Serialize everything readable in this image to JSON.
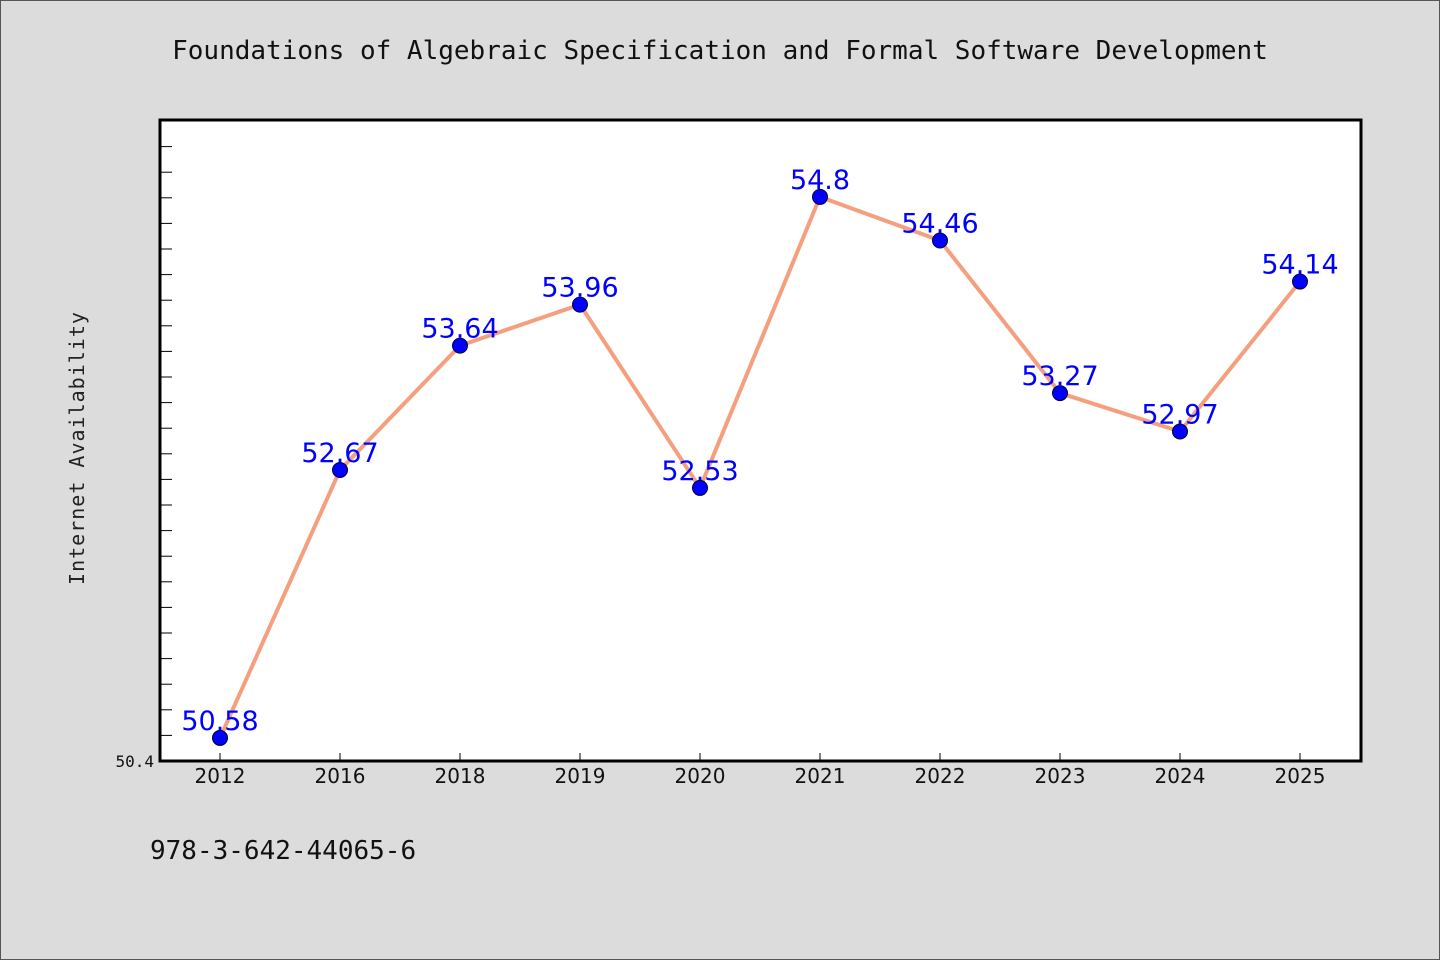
{
  "chart_data": {
    "type": "line",
    "title": "Foundations of Algebraic Specification and Formal Software Development",
    "xlabel": "",
    "ylabel": "Internet Availability",
    "categories": [
      "2012",
      "2016",
      "2018",
      "2019",
      "2020",
      "2021",
      "2022",
      "2023",
      "2024",
      "2025"
    ],
    "series": [
      {
        "values": [
          50.58,
          52.67,
          53.64,
          53.96,
          52.53,
          54.8,
          54.46,
          53.27,
          52.97,
          54.14
        ],
        "data_labels": [
          "50.58",
          "52.67",
          "53.64",
          "53.96",
          "52.53",
          "54.8",
          "54.46",
          "53.27",
          "52.97",
          "54.14"
        ]
      }
    ],
    "ylim": [
      50.4,
      55.4
    ],
    "y_tick_labels": [
      "50.4"
    ],
    "grid": false,
    "legend": "none",
    "colors": {
      "line": "#f4a07e",
      "marker": "#0000ff",
      "data_label": "#0000ff",
      "plot_background": "#ffffff",
      "page_background": "#dcdcdc"
    }
  },
  "footer": {
    "isbn": "978-3-642-44065-6"
  }
}
